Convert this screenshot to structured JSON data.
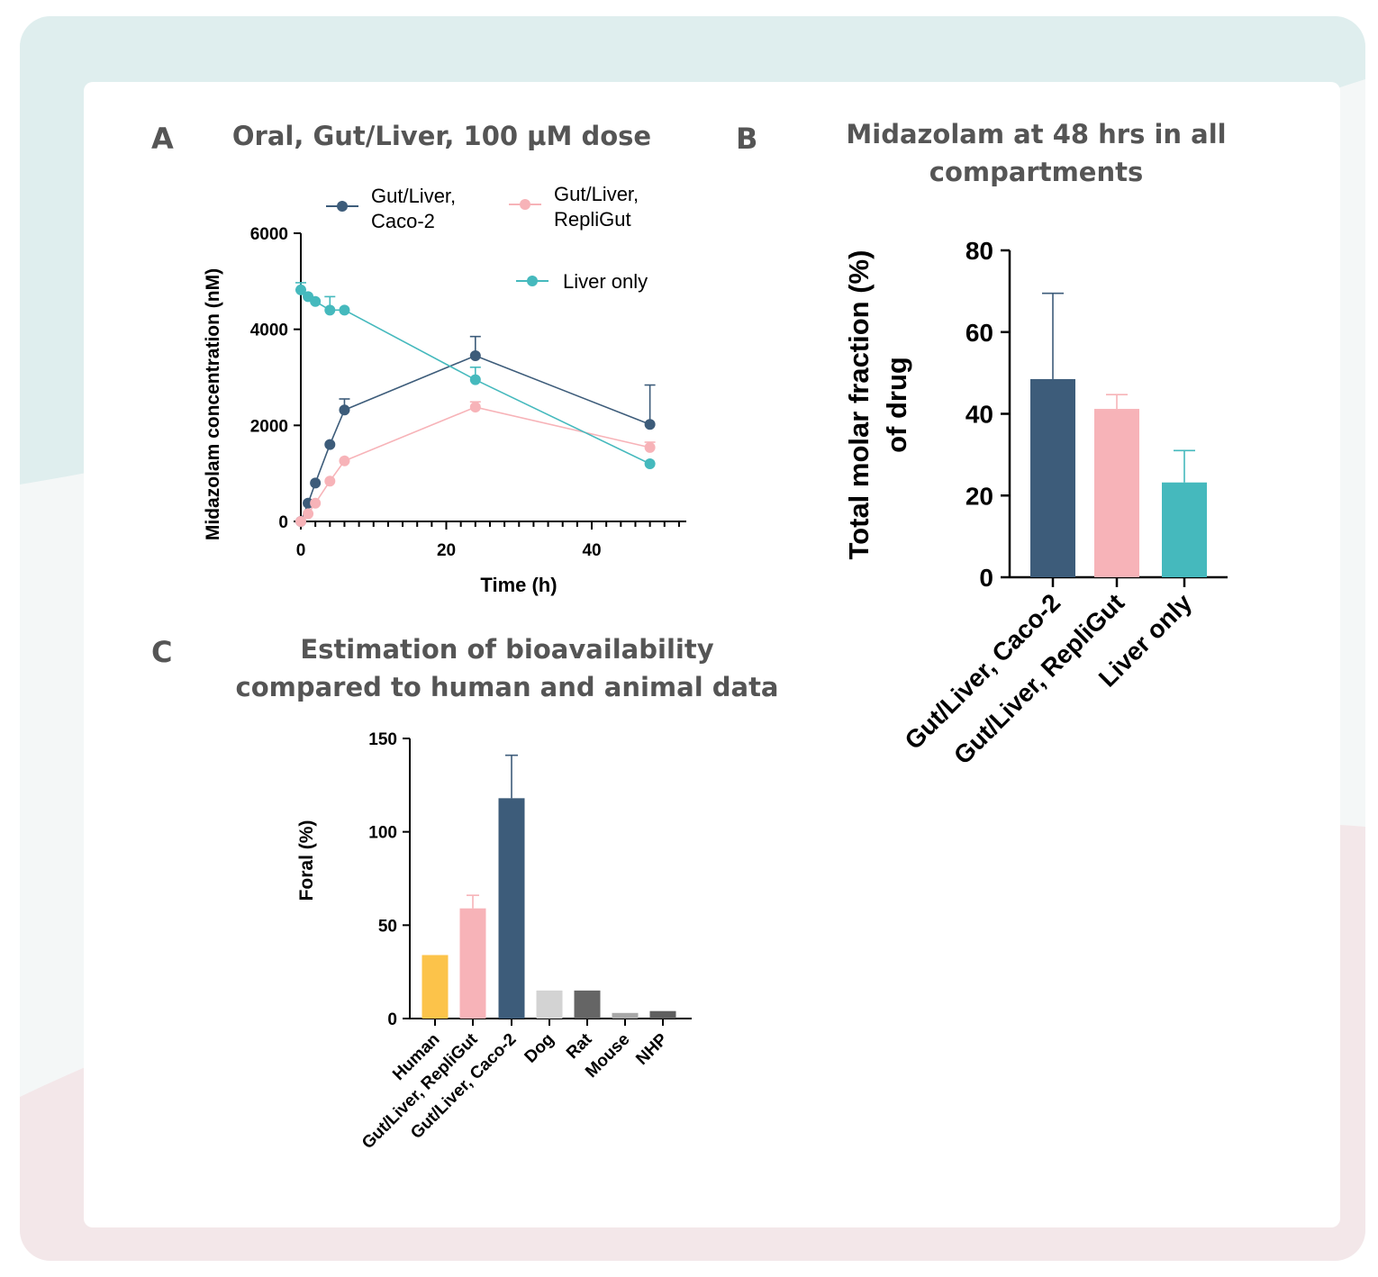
{
  "colors": {
    "caco2": "#3d5c7a",
    "repligut": "#f7b3b8",
    "liver_only": "#45b9bd",
    "human": "#fcc34a",
    "dog": "#d3d3d3",
    "rat": "#656565",
    "mouse": "#a8a8a8",
    "nhp": "#5f5f5f",
    "background_top": "#dfeeee",
    "background_bottom": "#f3e7e9",
    "title_text": "#555555"
  },
  "panels": {
    "a": {
      "letter": "A",
      "title": "Oral, Gut/Liver, 100 µM dose"
    },
    "b": {
      "letter": "B",
      "title_line1": "Midazolam at 48 hrs in all",
      "title_line2": "compartments"
    },
    "c": {
      "letter": "C",
      "title_line1": "Estimation of bioavailability",
      "title_line2": "compared to human and animal data"
    }
  },
  "chart_data": [
    {
      "id": "A",
      "type": "line",
      "title": "Oral, Gut/Liver, 100 µM dose",
      "xlabel": "Time (h)",
      "ylabel": "Midazolam concentration (nM)",
      "xlim": [
        0,
        53
      ],
      "ylim": [
        0,
        6000
      ],
      "xticks": [
        "0",
        "20",
        "40"
      ],
      "yticks": [
        "0",
        "2000",
        "4000",
        "6000"
      ],
      "legend": {
        "placement": "top",
        "caco2_line1": "Gut/Liver,",
        "caco2_line2": "Caco-2",
        "repligut_line1": "Gut/Liver,",
        "repligut_line2": "RepliGut",
        "liver": "Liver only"
      },
      "series": [
        {
          "name": "Gut/Liver, Caco-2",
          "color_key": "caco2",
          "x": [
            0,
            1,
            2,
            4,
            6,
            24,
            48
          ],
          "y": [
            0,
            380,
            800,
            1600,
            2320,
            3450,
            2020
          ],
          "err": [
            0,
            0,
            0,
            0,
            230,
            400,
            820
          ]
        },
        {
          "name": "Gut/Liver, RepliGut",
          "color_key": "repligut",
          "x": [
            0,
            1,
            2,
            4,
            6,
            24,
            48
          ],
          "y": [
            0,
            160,
            380,
            840,
            1260,
            2380,
            1540
          ],
          "err": [
            0,
            0,
            0,
            0,
            0,
            110,
            110
          ]
        },
        {
          "name": "Liver only",
          "color_key": "liver_only",
          "x": [
            0,
            1,
            2,
            4,
            6,
            24,
            48
          ],
          "y": [
            4820,
            4680,
            4580,
            4400,
            4400,
            2950,
            1200
          ],
          "err": [
            150,
            0,
            0,
            280,
            0,
            260,
            0
          ]
        }
      ]
    },
    {
      "id": "B",
      "type": "bar",
      "title": "Midazolam at 48 hrs in all compartments",
      "ylabel_line1": "Total molar fraction (%)",
      "ylabel_line2": "of drug",
      "ylim": [
        0,
        80
      ],
      "yticks": [
        "0",
        "20",
        "40",
        "60",
        "80"
      ],
      "categories": [
        "Gut/Liver, Caco-2",
        "Gut/Liver, RepliGut",
        "Liver only"
      ],
      "values": [
        48.5,
        41.2,
        23.2
      ],
      "err": [
        21,
        3.5,
        7.8
      ],
      "color_keys": [
        "caco2",
        "repligut",
        "liver_only"
      ]
    },
    {
      "id": "C",
      "type": "bar",
      "title": "Estimation of bioavailability compared to human and animal data",
      "ylabel": "Foral (%)",
      "ylim": [
        0,
        150
      ],
      "yticks": [
        "0",
        "50",
        "100",
        "150"
      ],
      "categories": [
        "Human",
        "Gut/Liver, RepliGut",
        "Gut/Liver, Caco-2",
        "Dog",
        "Rat",
        "Mouse",
        "NHP"
      ],
      "values": [
        34,
        59,
        118,
        15,
        15,
        3,
        4
      ],
      "err": [
        0,
        7,
        23,
        0,
        0,
        0,
        0
      ],
      "color_keys": [
        "human",
        "repligut",
        "caco2",
        "dog",
        "rat",
        "mouse",
        "nhp"
      ]
    }
  ]
}
